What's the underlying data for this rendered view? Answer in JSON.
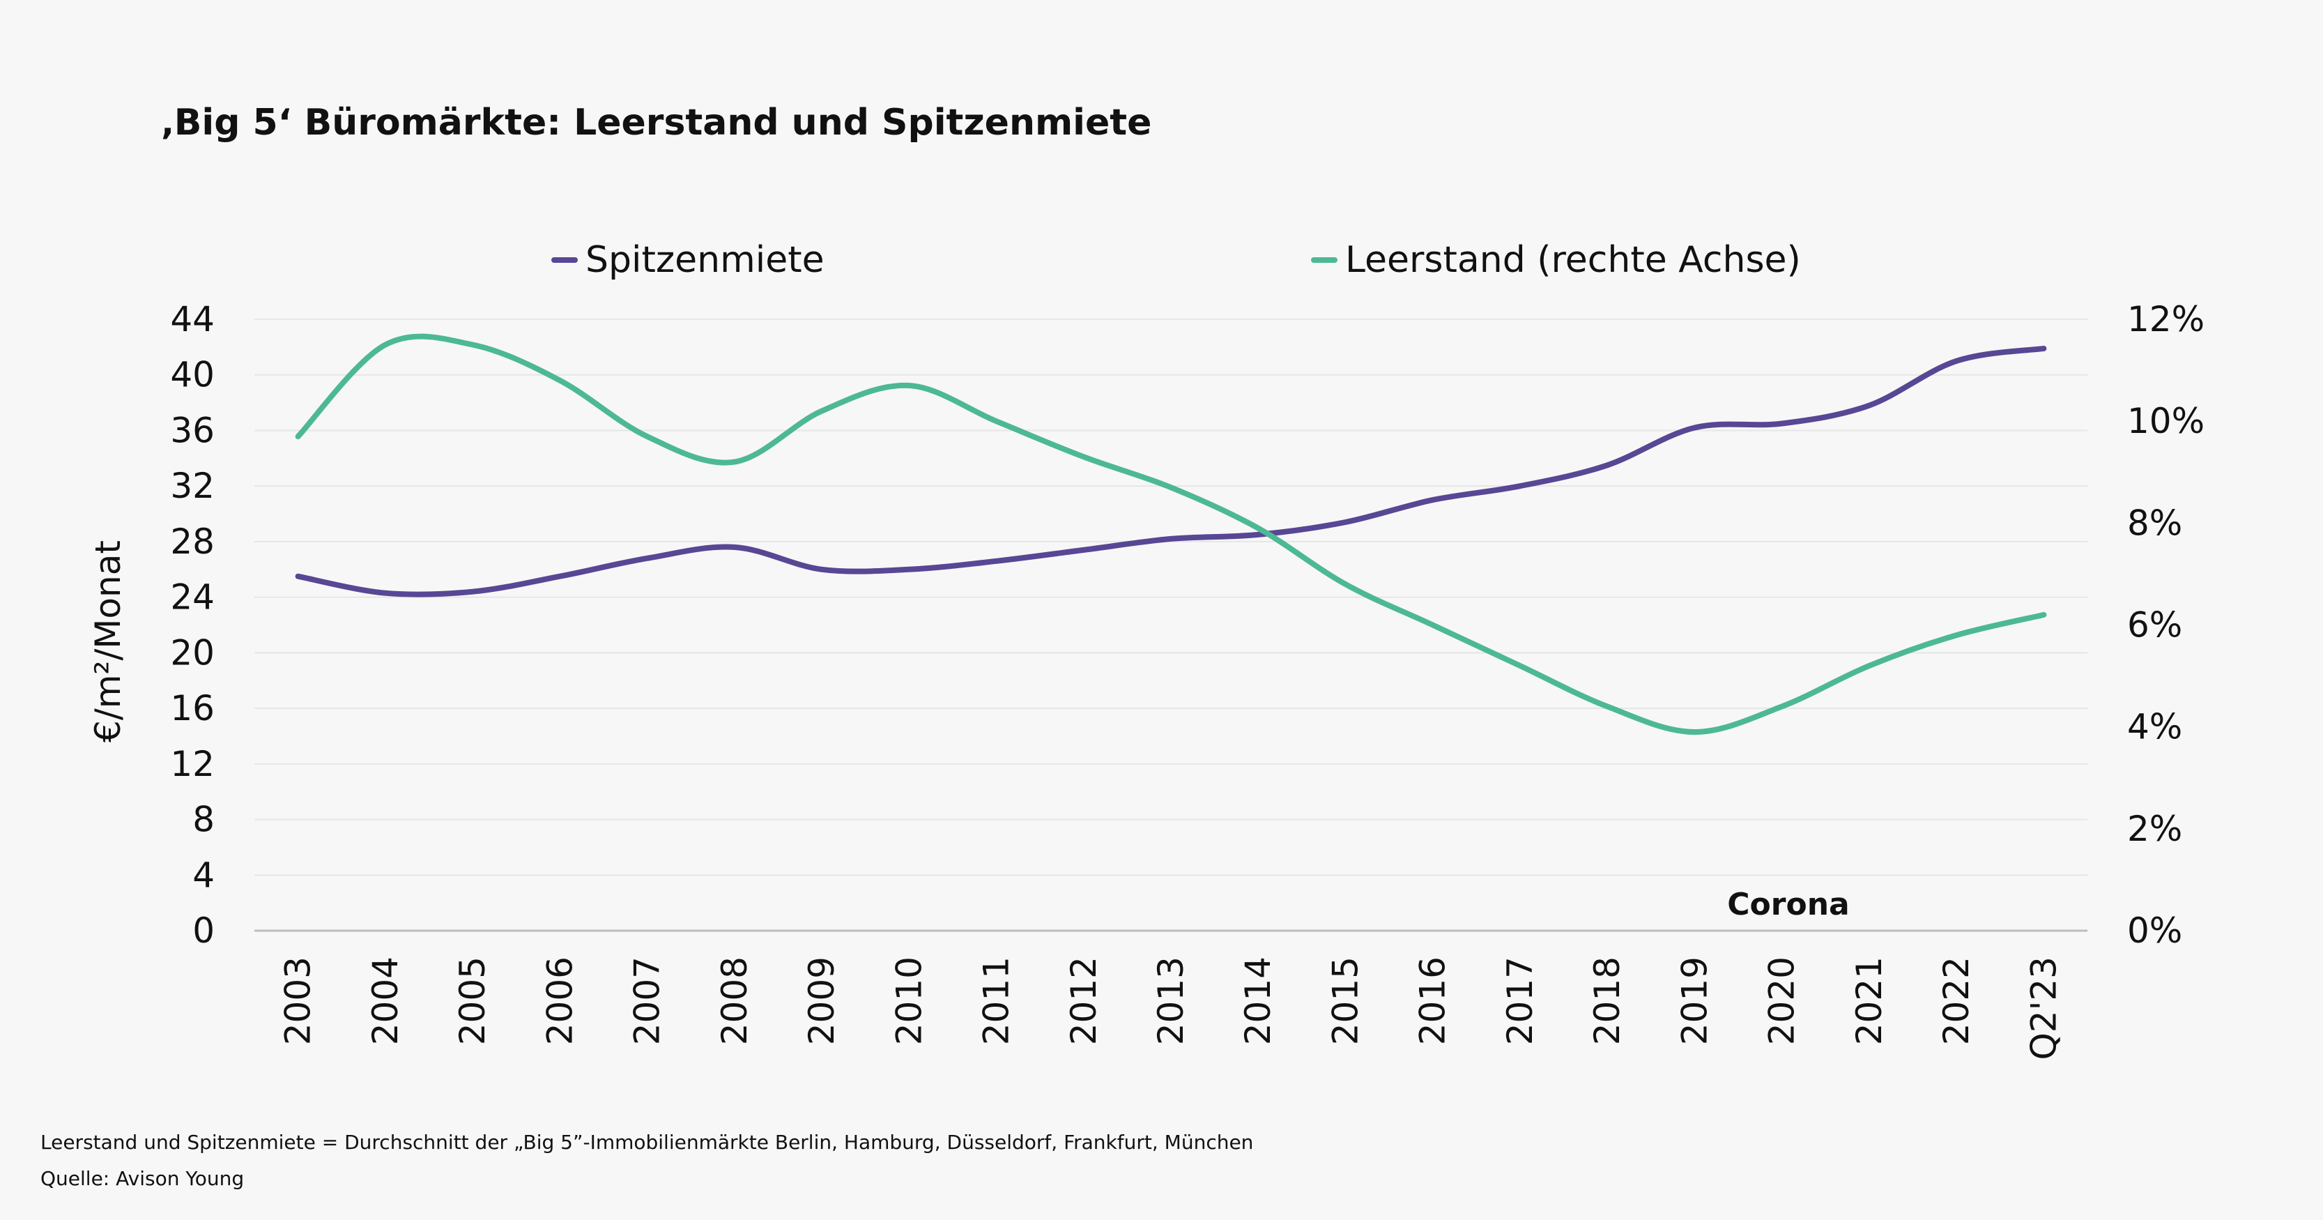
{
  "chart_data": {
    "type": "line",
    "title": "‚Big 5‘ Büromärkte: Leerstand und Spitzenmiete",
    "categories": [
      "2003",
      "2004",
      "2005",
      "2006",
      "2007",
      "2008",
      "2009",
      "2010",
      "2011",
      "2012",
      "2013",
      "2014",
      "2015",
      "2016",
      "2017",
      "2018",
      "2019",
      "2020",
      "2021",
      "2022",
      "Q2'23"
    ],
    "series": [
      {
        "name": "Spitzenmiete",
        "axis": "left",
        "color": "#574794",
        "values": [
          25.5,
          24.3,
          24.4,
          25.5,
          26.8,
          27.6,
          26.0,
          26.0,
          26.6,
          27.4,
          28.2,
          28.5,
          29.4,
          31.0,
          32.0,
          33.5,
          36.2,
          36.5,
          37.8,
          41.0,
          41.9
        ]
      },
      {
        "name": "Leerstand (rechte Achse)",
        "axis": "right",
        "color": "#4db896",
        "values": [
          9.7,
          11.5,
          11.5,
          10.8,
          9.7,
          9.2,
          10.2,
          10.7,
          10.0,
          9.3,
          8.7,
          7.9,
          6.8,
          6.0,
          5.2,
          4.4,
          3.9,
          4.4,
          5.2,
          5.8,
          6.2
        ]
      }
    ],
    "ylabel": "€/m²/Monat",
    "ylim": [
      0,
      44
    ],
    "yticks": [
      "0",
      "4",
      "8",
      "12",
      "16",
      "20",
      "24",
      "28",
      "32",
      "36",
      "40",
      "44"
    ],
    "y2lim": [
      0,
      12
    ],
    "y2ticks": [
      "0%",
      "2%",
      "4%",
      "6%",
      "8%",
      "10%",
      "12%"
    ],
    "annotation": "Corona",
    "legend": "top"
  },
  "footnote": "Leerstand und Spitzenmiete = Durchschnitt der „Big 5”-Immobilienmärkte Berlin, Hamburg, Düsseldorf, Frankfurt, München",
  "source": "Quelle: Avison Young"
}
